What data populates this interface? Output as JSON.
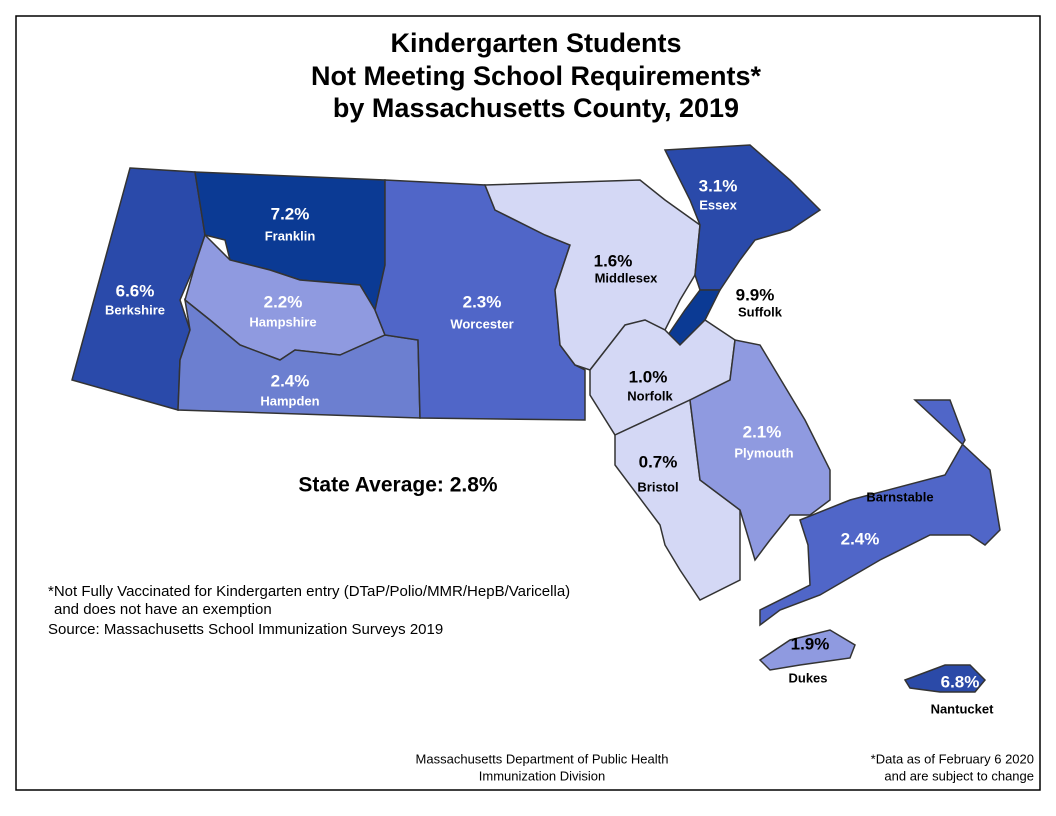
{
  "title": [
    "Kindergarten Students",
    "Not Meeting School Requirements*",
    "by Massachusetts County, 2019"
  ],
  "state_average": "State Average: 2.8%",
  "footnote": [
    "*Not Fully Vaccinated for Kindergarten entry (DTaP/Polio/MMR/HepB/Varicella)",
    "and does not have an exemption",
    "Source: Massachusetts School Immunization Surveys 2019"
  ],
  "credit": [
    "Massachusetts Department of Public Health",
    "Immunization Division"
  ],
  "data_note": [
    "*Data as of February 6 2020",
    "and are subject to change"
  ],
  "counties": [
    {
      "name": "Berkshire",
      "label": "6.6%",
      "color": "#2a4aaa"
    },
    {
      "name": "Franklin",
      "label": "7.2%",
      "color": "#0b3a94"
    },
    {
      "name": "Hampshire",
      "label": "2.2%",
      "color": "#8f9ae0"
    },
    {
      "name": "Hampden",
      "label": "2.4%",
      "color": "#6c7fd0"
    },
    {
      "name": "Worcester",
      "label": "2.3%",
      "color": "#5066c8"
    },
    {
      "name": "Middlesex",
      "label": "1.6%",
      "color": "#d4d8f5"
    },
    {
      "name": "Essex",
      "label": "3.1%",
      "color": "#2a4aaa"
    },
    {
      "name": "Suffolk",
      "label": "9.9%",
      "color": "#0b3a94"
    },
    {
      "name": "Norfolk",
      "label": "1.0%",
      "color": "#d4d8f5"
    },
    {
      "name": "Bristol",
      "label": "0.7%",
      "color": "#d4d8f5"
    },
    {
      "name": "Plymouth",
      "label": "2.1%",
      "color": "#8f9ae0"
    },
    {
      "name": "Barnstable",
      "label": "2.4%",
      "color": "#5066c8"
    },
    {
      "name": "Dukes",
      "label": "1.9%",
      "color": "#8f9ae0"
    },
    {
      "name": "Nantucket",
      "label": "6.8%",
      "color": "#2b4aa8"
    }
  ]
}
